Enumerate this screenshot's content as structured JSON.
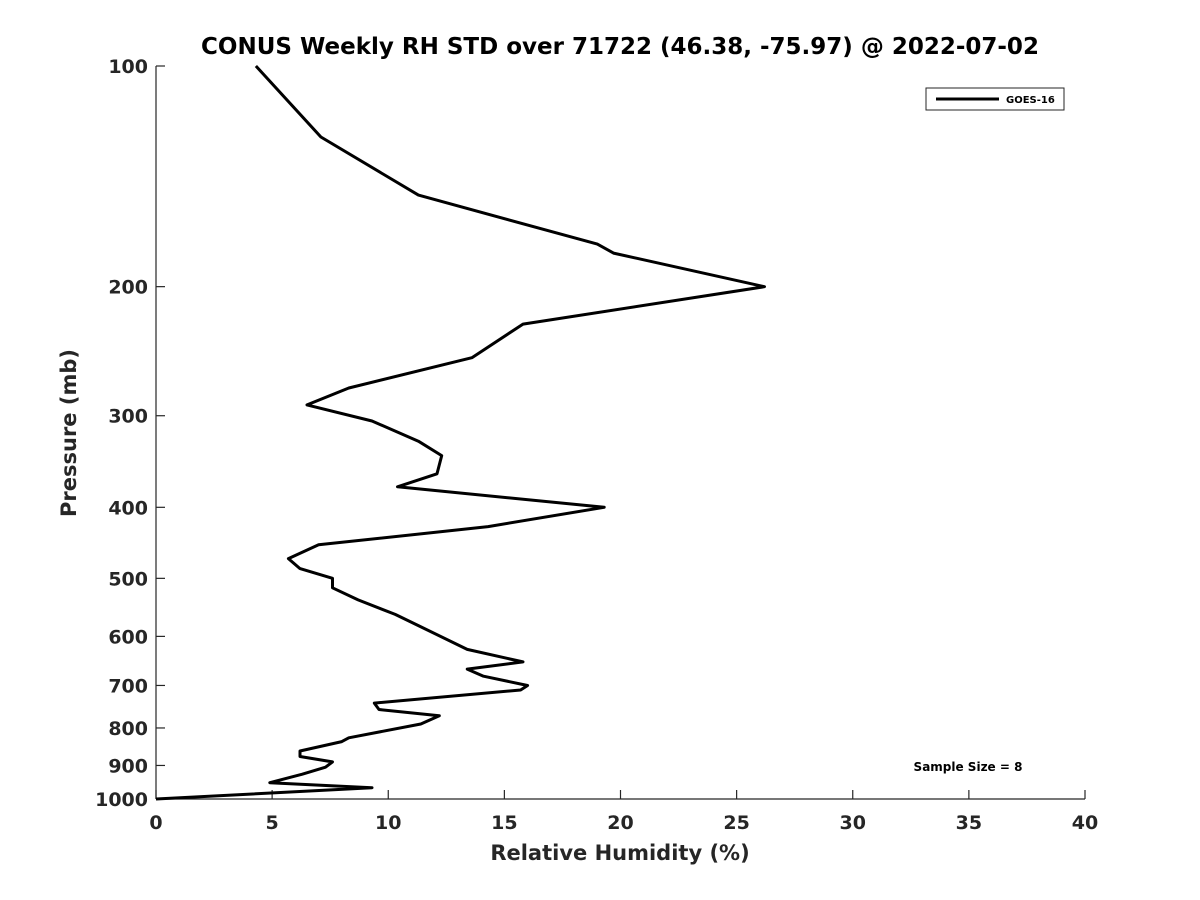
{
  "chart_data": {
    "type": "line",
    "title": "CONUS Weekly RH STD over 71722 (46.38, -75.97) @ 2022-07-02",
    "xlabel": "Relative Humidity (%)",
    "ylabel": "Pressure (mb)",
    "xlim": [
      0,
      40
    ],
    "ylim": [
      100,
      1000
    ],
    "y_scale": "log",
    "y_reversed": true,
    "xticks": [
      0,
      5,
      10,
      15,
      20,
      25,
      30,
      35,
      40
    ],
    "yticks": [
      100,
      200,
      300,
      400,
      500,
      600,
      700,
      800,
      900,
      1000
    ],
    "grid": false,
    "legend_position": "top-right",
    "annotation": "Sample Size = 8",
    "series": [
      {
        "name": "GOES-16",
        "color": "#000000",
        "points": [
          [
            4.3,
            100
          ],
          [
            7.1,
            125
          ],
          [
            11.3,
            150
          ],
          [
            19.0,
            175
          ],
          [
            19.7,
            180
          ],
          [
            26.2,
            200
          ],
          [
            15.8,
            225
          ],
          [
            13.6,
            250
          ],
          [
            8.3,
            275
          ],
          [
            6.5,
            290
          ],
          [
            9.3,
            305
          ],
          [
            11.3,
            325
          ],
          [
            12.3,
            340
          ],
          [
            12.1,
            360
          ],
          [
            10.4,
            375
          ],
          [
            19.3,
            400
          ],
          [
            14.3,
            425
          ],
          [
            7.0,
            450
          ],
          [
            5.7,
            470
          ],
          [
            6.2,
            485
          ],
          [
            7.6,
            500
          ],
          [
            7.6,
            515
          ],
          [
            8.7,
            535
          ],
          [
            10.3,
            560
          ],
          [
            11.3,
            580
          ],
          [
            13.4,
            625
          ],
          [
            15.8,
            650
          ],
          [
            13.4,
            665
          ],
          [
            14.1,
            680
          ],
          [
            16.0,
            700
          ],
          [
            15.7,
            710
          ],
          [
            9.4,
            740
          ],
          [
            9.6,
            755
          ],
          [
            12.2,
            770
          ],
          [
            11.4,
            790
          ],
          [
            8.3,
            825
          ],
          [
            8.0,
            835
          ],
          [
            6.2,
            860
          ],
          [
            6.2,
            875
          ],
          [
            7.6,
            890
          ],
          [
            7.3,
            905
          ],
          [
            6.3,
            925
          ],
          [
            4.9,
            950
          ],
          [
            9.3,
            965
          ],
          [
            0.0,
            1000
          ]
        ]
      }
    ]
  }
}
